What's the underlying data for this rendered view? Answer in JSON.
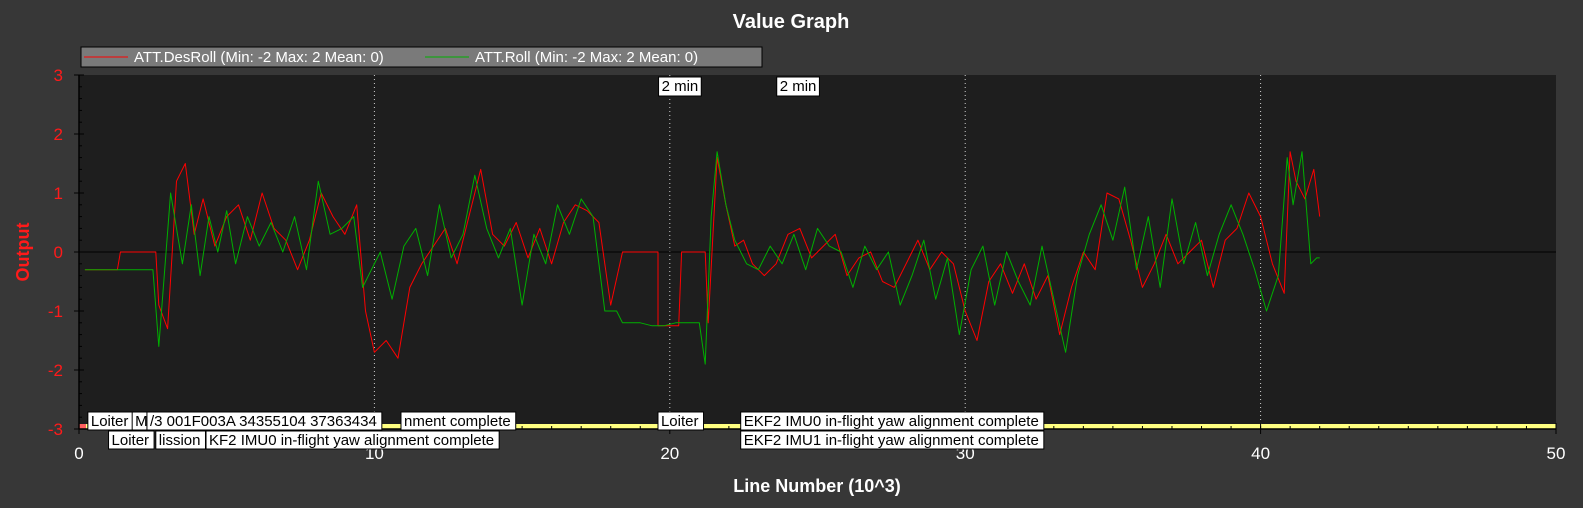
{
  "chart_data": {
    "type": "line",
    "title": "Value Graph",
    "xlabel": "Line Number (10^3)",
    "ylabel": "Output",
    "xlim": [
      0,
      50
    ],
    "ylim": [
      -3,
      3
    ],
    "x_ticks": [
      "0",
      "10",
      "20",
      "30",
      "40",
      "50"
    ],
    "y_ticks": [
      "3",
      "2",
      "1",
      "0",
      "-1",
      "-2",
      "-3"
    ],
    "grid": "vertical dotted at x=10,20,30,40",
    "legend_position": "top-left",
    "colors": {
      "ATT.DesRoll": "#ff0000",
      "ATT.Roll": "#00b000",
      "y_axis": "#ff1a1a",
      "plot_bg": "#1e1e1e",
      "event_bar": "#ffff80"
    },
    "series": [
      {
        "name": "ATT.DesRoll (Min: -2 Max: 2 Mean: 0)",
        "color": "#ff0000",
        "x": [
          0.2,
          1.3,
          1.4,
          2.6,
          2.7,
          3.0,
          3.3,
          3.6,
          3.9,
          4.2,
          4.6,
          5.0,
          5.4,
          5.8,
          6.2,
          6.6,
          7.0,
          7.4,
          7.8,
          8.2,
          8.6,
          9.0,
          9.4,
          9.7,
          10.0,
          10.4,
          10.8,
          11.2,
          11.6,
          12.0,
          12.4,
          12.8,
          13.2,
          13.6,
          14.0,
          14.4,
          14.8,
          15.2,
          15.6,
          16.0,
          16.4,
          16.8,
          17.2,
          17.6,
          18.0,
          18.4,
          18.6,
          19.0,
          19.6,
          19.6,
          20.3,
          20.4,
          21.2,
          21.3,
          21.6,
          21.9,
          22.2,
          22.5,
          22.8,
          23.2,
          23.6,
          24.0,
          24.4,
          24.8,
          25.2,
          25.6,
          26.0,
          26.4,
          26.8,
          27.2,
          27.6,
          28.0,
          28.4,
          28.8,
          29.2,
          29.6,
          30.0,
          30.4,
          30.8,
          31.2,
          31.6,
          32.0,
          32.4,
          32.8,
          33.2,
          33.6,
          34.0,
          34.4,
          34.8,
          35.2,
          35.6,
          36.0,
          36.4,
          36.8,
          37.2,
          37.6,
          38.0,
          38.4,
          38.8,
          39.2,
          39.6,
          40.0,
          40.4,
          40.8,
          41.0,
          41.2,
          41.5,
          41.8,
          42.0
        ],
        "values": [
          -0.3,
          -0.3,
          0.0,
          0.0,
          -0.9,
          -1.3,
          1.2,
          1.5,
          0.3,
          0.9,
          0.1,
          0.6,
          0.8,
          0.2,
          1.0,
          0.4,
          0.2,
          -0.3,
          0.2,
          1.0,
          0.6,
          0.3,
          0.8,
          -1.0,
          -1.7,
          -1.5,
          -1.8,
          -0.6,
          -0.2,
          0.1,
          0.4,
          -0.2,
          0.6,
          1.4,
          0.3,
          0.1,
          0.5,
          -0.1,
          0.4,
          -0.2,
          0.5,
          0.8,
          0.7,
          0.5,
          -0.9,
          0.0,
          0.0,
          0.0,
          0.0,
          -1.25,
          -1.25,
          0.0,
          0.0,
          -1.2,
          1.6,
          0.8,
          0.1,
          0.2,
          -0.2,
          -0.4,
          -0.2,
          0.3,
          0.4,
          -0.1,
          0.1,
          0.3,
          -0.4,
          -0.1,
          0.0,
          -0.5,
          -0.6,
          -0.2,
          0.2,
          -0.3,
          0.0,
          -0.2,
          -1.0,
          -1.5,
          -0.5,
          -0.2,
          -0.7,
          -0.2,
          -0.8,
          -0.4,
          -1.4,
          -0.6,
          0.0,
          -0.3,
          1.0,
          0.9,
          0.2,
          -0.6,
          -0.2,
          0.3,
          -0.2,
          0.0,
          0.2,
          -0.6,
          0.2,
          0.4,
          1.0,
          0.6,
          -0.2,
          -0.7,
          1.7,
          1.2,
          0.9,
          1.4,
          0.6
        ]
      },
      {
        "name": "ATT.Roll (Min: -2 Max: 2 Mean: 0)",
        "color": "#00b000",
        "x": [
          0.2,
          1.5,
          2.5,
          2.7,
          3.1,
          3.3,
          3.5,
          3.8,
          4.1,
          4.4,
          4.7,
          5.0,
          5.3,
          5.7,
          6.1,
          6.5,
          6.9,
          7.3,
          7.7,
          8.1,
          8.5,
          8.9,
          9.3,
          9.6,
          9.9,
          10.2,
          10.6,
          11.0,
          11.4,
          11.8,
          12.2,
          12.6,
          13.0,
          13.4,
          13.8,
          14.2,
          14.6,
          15.0,
          15.4,
          15.8,
          16.2,
          16.6,
          17.0,
          17.4,
          17.8,
          18.2,
          18.4,
          18.7,
          19.0,
          19.4,
          19.8,
          20.2,
          20.6,
          21.0,
          21.2,
          21.4,
          21.6,
          21.9,
          22.2,
          22.6,
          23.0,
          23.4,
          23.8,
          24.2,
          24.6,
          25.0,
          25.4,
          25.8,
          26.2,
          26.6,
          27.0,
          27.4,
          27.8,
          28.2,
          28.6,
          29.0,
          29.4,
          29.8,
          30.2,
          30.6,
          31.0,
          31.4,
          31.8,
          32.2,
          32.6,
          33.0,
          33.4,
          33.8,
          34.2,
          34.6,
          35.0,
          35.4,
          35.8,
          36.2,
          36.6,
          37.0,
          37.4,
          37.8,
          38.2,
          38.6,
          39.0,
          39.4,
          39.8,
          40.2,
          40.6,
          40.9,
          41.1,
          41.4,
          41.7,
          41.9,
          42.0
        ],
        "values": [
          -0.3,
          -0.3,
          -0.3,
          -1.6,
          1.0,
          0.4,
          -0.2,
          0.8,
          -0.4,
          0.6,
          0.0,
          0.7,
          -0.2,
          0.6,
          0.1,
          0.5,
          0.0,
          0.6,
          -0.3,
          1.2,
          0.3,
          0.4,
          0.6,
          -0.6,
          -0.3,
          0.0,
          -0.8,
          0.1,
          0.4,
          -0.4,
          0.8,
          -0.1,
          0.3,
          1.3,
          0.4,
          -0.1,
          0.4,
          -0.9,
          0.3,
          -0.2,
          0.8,
          0.3,
          0.9,
          0.6,
          -1.0,
          -1.0,
          -1.2,
          -1.2,
          -1.2,
          -1.25,
          -1.25,
          -1.2,
          -1.2,
          -1.2,
          -1.9,
          0.6,
          1.7,
          0.8,
          0.2,
          -0.2,
          -0.3,
          0.1,
          -0.2,
          0.3,
          -0.3,
          0.4,
          0.1,
          0.0,
          -0.6,
          0.1,
          -0.3,
          0.0,
          -0.9,
          -0.4,
          0.2,
          -0.8,
          -0.1,
          -1.4,
          -0.3,
          0.1,
          -0.9,
          0.0,
          -0.5,
          -0.9,
          0.1,
          -0.8,
          -1.7,
          -0.4,
          0.3,
          0.8,
          0.2,
          1.1,
          -0.3,
          0.6,
          -0.6,
          0.9,
          -0.2,
          0.5,
          -0.4,
          0.3,
          0.8,
          0.3,
          -0.3,
          -1.0,
          -0.4,
          1.6,
          0.8,
          1.7,
          -0.2,
          -0.1,
          -0.1
        ]
      }
    ],
    "time_labels": [
      {
        "x": 20.5,
        "text": "2 min"
      },
      {
        "x": 24.5,
        "text": "2 min"
      }
    ],
    "event_labels": [
      {
        "x": 0.3,
        "row": 0,
        "text": "Loiter"
      },
      {
        "x": 1.8,
        "row": 0,
        "text": "M"
      },
      {
        "x": 2.3,
        "row": 0,
        "text": "/3 001F003A 34355104 37363434"
      },
      {
        "x": 10.9,
        "row": 0,
        "text": "nment complete"
      },
      {
        "x": 19.6,
        "row": 0,
        "text": "Loiter"
      },
      {
        "x": 22.4,
        "row": 0,
        "text": "EKF2 IMU0 in-flight yaw alignment complete"
      },
      {
        "x": 1.0,
        "row": 1,
        "text": "Loiter"
      },
      {
        "x": 2.6,
        "row": 1,
        "text": "lission"
      },
      {
        "x": 4.3,
        "row": 1,
        "text": "KF2 IMU0 in-flight yaw alignment complete"
      },
      {
        "x": 22.4,
        "row": 1,
        "text": "EKF2 IMU1 in-flight yaw alignment complete"
      }
    ]
  }
}
